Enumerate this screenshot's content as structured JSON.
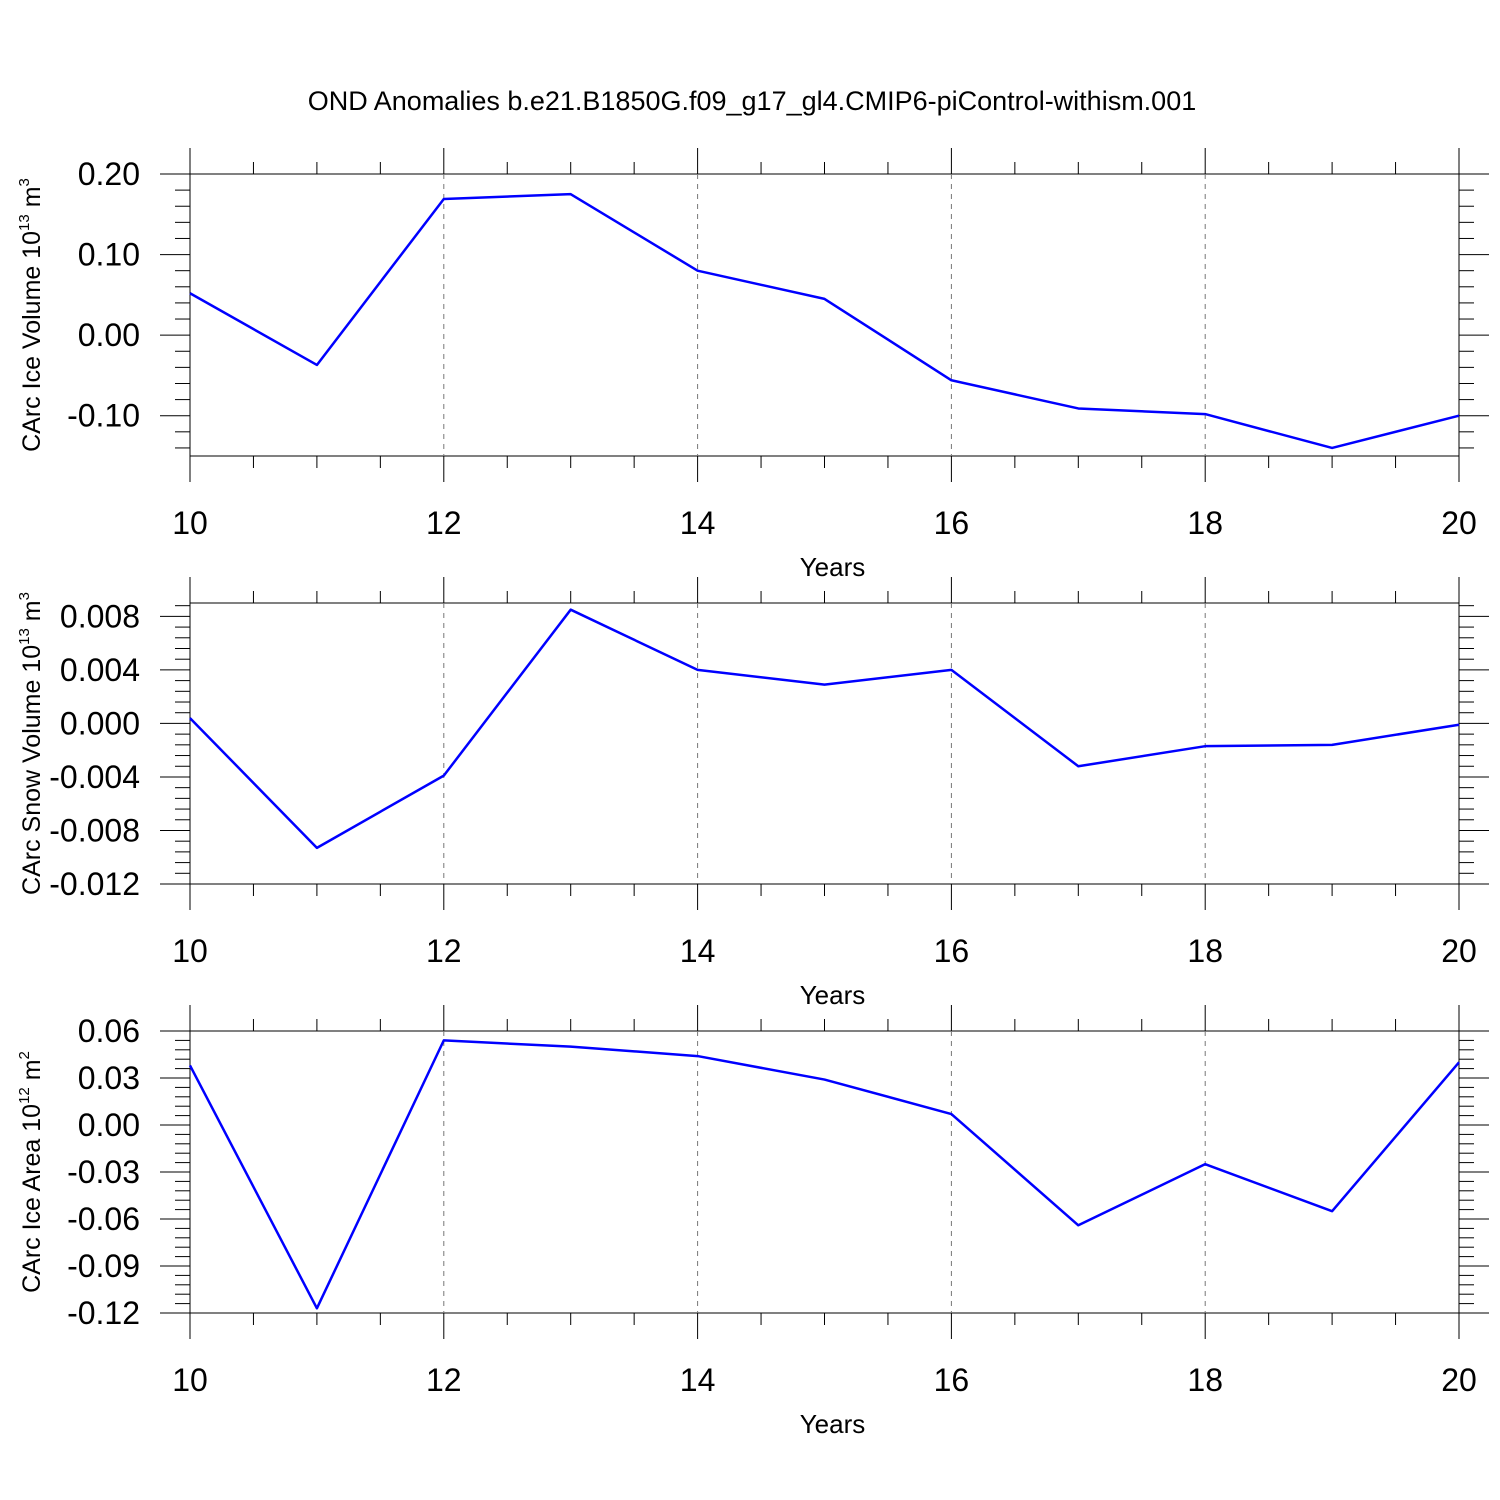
{
  "title": "OND Anomalies b.e21.B1850G.f09_g17_gl4.CMIP6-piControl-withism.001",
  "chart_data": [
    {
      "type": "line",
      "xlabel": "Years",
      "ylabel_parts": [
        "CArc Ice Volume 10",
        "13",
        " m",
        "3"
      ],
      "x": [
        10,
        11,
        12,
        13,
        14,
        15,
        16,
        17,
        18,
        19,
        20
      ],
      "series": [
        {
          "color": "#0000ff",
          "values": [
            0.052,
            -0.037,
            0.169,
            0.175,
            0.08,
            0.045,
            -0.056,
            -0.091,
            -0.098,
            -0.14,
            -0.1
          ]
        }
      ],
      "xlim": [
        10,
        20
      ],
      "xticks": [
        10,
        12,
        14,
        16,
        18,
        20
      ],
      "ylim": [
        -0.15,
        0.2
      ],
      "yticks": [
        {
          "value": 0.2,
          "label": "0.20"
        },
        {
          "value": 0.1,
          "label": "0.10"
        },
        {
          "value": 0,
          "label": "0.00"
        },
        {
          "value": -0.1,
          "label": "-0.10"
        }
      ],
      "xgrid": true
    },
    {
      "type": "line",
      "xlabel": "Years",
      "ylabel_parts": [
        "CArc Snow Volume 10",
        "13",
        " m",
        "3"
      ],
      "x": [
        10,
        11,
        12,
        13,
        14,
        15,
        16,
        17,
        18,
        19,
        20
      ],
      "series": [
        {
          "color": "#0000ff",
          "values": [
            0.0004,
            -0.0093,
            -0.0039,
            0.0085,
            0.004,
            0.0029,
            0.004,
            -0.0032,
            -0.0017,
            -0.0016,
            -0.0001
          ]
        }
      ],
      "xlim": [
        10,
        20
      ],
      "xticks": [
        10,
        12,
        14,
        16,
        18,
        20
      ],
      "ylim": [
        -0.012,
        0.009
      ],
      "yticks": [
        0.008,
        0.004,
        {
          "value": 0,
          "label": "0.000"
        },
        -0.004,
        -0.008,
        -0.012
      ],
      "xgrid": true
    },
    {
      "type": "line",
      "xlabel": "Years",
      "ylabel_parts": [
        "CArc Ice Area 10",
        "12",
        " m",
        "2"
      ],
      "x": [
        10,
        11,
        12,
        13,
        14,
        15,
        16,
        17,
        18,
        19,
        20
      ],
      "series": [
        {
          "color": "#0000ff",
          "values": [
            0.038,
            -0.117,
            0.054,
            0.05,
            0.044,
            0.029,
            0.007,
            -0.064,
            -0.025,
            -0.055,
            0.04
          ]
        }
      ],
      "xlim": [
        10,
        20
      ],
      "xticks": [
        10,
        12,
        14,
        16,
        18,
        20
      ],
      "ylim": [
        -0.12,
        0.06
      ],
      "yticks": [
        0.06,
        0.03,
        {
          "value": 0,
          "label": "0.00"
        },
        -0.03,
        -0.06,
        -0.09,
        -0.12
      ],
      "xgrid": true
    }
  ]
}
